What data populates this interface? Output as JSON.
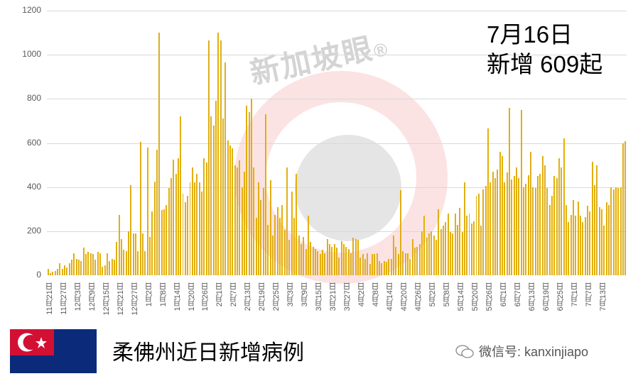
{
  "headline": {
    "date": "7月16日",
    "count_text": "新增 609起"
  },
  "footer": {
    "title": "柔佛州近日新增病例",
    "wechat_label": "微信号: kanxinjiapo"
  },
  "watermark": {
    "text": "新加坡眼",
    "mark": "®"
  },
  "colors": {
    "bar": "#e6b000",
    "grid": "#d9d9d9",
    "watermark_red": "#e65050"
  },
  "chart_data": {
    "type": "bar",
    "title": "柔佛州近日新增病例",
    "xlabel": "",
    "ylabel": "",
    "ylim": [
      0,
      1200
    ],
    "yticks": [
      0,
      200,
      400,
      600,
      800,
      1000,
      1200
    ],
    "grid": true,
    "legend": "none",
    "x_tick_labels": [
      "11月21日",
      "11月27日",
      "12月3日",
      "12月9日",
      "12月15日",
      "12月21日",
      "12月27日",
      "1月2日",
      "1月8日",
      "1月14日",
      "1月20日",
      "1月26日",
      "2月1日",
      "2月7日",
      "2月13日",
      "2月19日",
      "2月25日",
      "3月3日",
      "3月9日",
      "3月15日",
      "3月21日",
      "3月27日",
      "4月2日",
      "4月8日",
      "4月14日",
      "4月20日",
      "4月26日",
      "5月2日",
      "5月8日",
      "5月14日",
      "5月20日",
      "5月26日",
      "6月1日",
      "6月7日",
      "6月13日",
      "6月19日",
      "6月25日",
      "7月1日",
      "7月7日",
      "7月13日"
    ],
    "start_date": "11月21日",
    "end_date": "7月16日",
    "values": [
      30,
      10,
      15,
      20,
      30,
      55,
      30,
      45,
      35,
      55,
      70,
      100,
      75,
      70,
      65,
      125,
      95,
      105,
      100,
      95,
      70,
      105,
      100,
      40,
      45,
      100,
      65,
      75,
      70,
      150,
      275,
      165,
      115,
      110,
      200,
      410,
      190,
      190,
      110,
      605,
      190,
      110,
      580,
      175,
      290,
      425,
      570,
      1100,
      295,
      300,
      320,
      395,
      440,
      525,
      460,
      530,
      720,
      370,
      330,
      360,
      420,
      490,
      420,
      460,
      420,
      380,
      530,
      510,
      1065,
      720,
      680,
      790,
      1100,
      1065,
      710,
      965,
      610,
      590,
      575,
      500,
      490,
      520,
      400,
      470,
      770,
      740,
      800,
      490,
      260,
      420,
      340,
      395,
      730,
      230,
      430,
      180,
      275,
      310,
      260,
      320,
      205,
      490,
      160,
      380,
      260,
      460,
      180,
      140,
      175,
      120,
      270,
      150,
      130,
      120,
      110,
      95,
      115,
      100,
      165,
      140,
      130,
      140,
      125,
      80,
      155,
      140,
      130,
      120,
      100,
      170,
      165,
      160,
      80,
      95,
      75,
      100,
      50,
      95,
      95,
      100,
      65,
      55,
      65,
      60,
      75,
      75,
      180,
      130,
      95,
      385,
      110,
      100,
      100,
      75,
      165,
      125,
      130,
      140,
      200,
      270,
      170,
      190,
      200,
      180,
      160,
      300,
      210,
      225,
      240,
      280,
      195,
      190,
      280,
      230,
      305,
      195,
      420,
      270,
      280,
      235,
      245,
      360,
      370,
      225,
      390,
      405,
      665,
      420,
      470,
      440,
      480,
      560,
      540,
      420,
      465,
      760,
      435,
      450,
      490,
      440,
      750,
      400,
      415,
      455,
      560,
      400,
      395,
      450,
      460,
      540,
      500,
      395,
      320,
      360,
      450,
      440,
      530,
      490,
      620,
      320,
      240,
      275,
      340,
      270,
      335,
      270,
      240,
      265,
      315,
      290,
      515,
      410,
      500,
      310,
      300,
      225,
      330,
      320,
      400,
      390,
      400,
      395,
      400,
      600,
      609
    ],
    "annotations": [
      "7月16日 新增 609起"
    ]
  }
}
